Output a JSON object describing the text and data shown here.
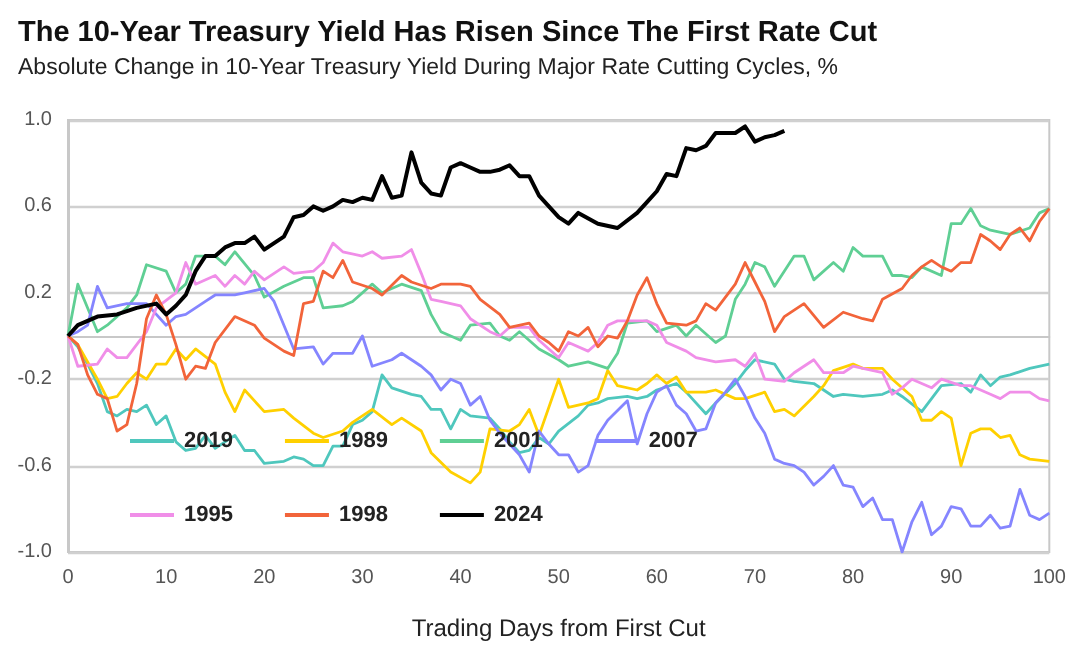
{
  "chart_data": {
    "type": "line",
    "title": "The 10-Year Treasury Yield Has Risen Since The First Rate Cut",
    "subtitle": "Absolute Change in 10-Year Treasury Yield During Major Rate Cutting Cycles, %",
    "xlabel": "Trading Days from First Cut",
    "xlim": [
      0,
      100
    ],
    "xticks": [
      0,
      10,
      20,
      30,
      40,
      50,
      60,
      70,
      80,
      90,
      100
    ],
    "ylim": [
      -1,
      1
    ],
    "yticks": [
      {
        "value": -1,
        "label": "-1.0"
      },
      -0.6,
      -0.2,
      0.2,
      0.6,
      {
        "value": 1,
        "label": "1.0"
      }
    ],
    "grid": "y",
    "legend": "bottom left",
    "marker": "none",
    "line_style": "solid",
    "series": [
      {
        "name": "2019",
        "color": "#4fc7bd",
        "x": [
          0,
          1,
          2,
          3,
          4,
          5,
          6,
          7,
          8,
          9,
          10,
          11,
          12,
          13,
          14,
          15,
          17,
          18,
          19,
          20,
          22,
          23,
          24,
          25,
          26,
          27,
          28,
          29,
          30,
          31,
          32,
          33,
          35,
          36,
          37,
          38,
          39,
          40,
          41,
          43,
          44,
          45,
          46,
          47,
          48,
          49,
          50,
          52,
          53,
          54,
          55,
          57,
          58,
          59,
          60,
          62,
          63,
          65,
          66,
          68,
          69,
          70,
          72,
          73,
          74,
          76,
          78,
          79,
          81,
          83,
          84,
          85,
          87,
          88,
          89,
          91,
          92,
          93,
          94,
          95,
          96,
          98,
          100
        ],
        "values": [
          0,
          -0.05,
          -0.13,
          -0.22,
          -0.35,
          -0.37,
          -0.34,
          -0.35,
          -0.32,
          -0.41,
          -0.37,
          -0.49,
          -0.53,
          -0.52,
          -0.46,
          -0.52,
          -0.46,
          -0.53,
          -0.53,
          -0.59,
          -0.58,
          -0.56,
          -0.57,
          -0.6,
          -0.6,
          -0.51,
          -0.51,
          -0.41,
          -0.39,
          -0.35,
          -0.18,
          -0.24,
          -0.27,
          -0.28,
          -0.34,
          -0.34,
          -0.43,
          -0.34,
          -0.37,
          -0.38,
          -0.43,
          -0.49,
          -0.54,
          -0.53,
          -0.47,
          -0.5,
          -0.44,
          -0.37,
          -0.32,
          -0.31,
          -0.29,
          -0.28,
          -0.29,
          -0.28,
          -0.25,
          -0.22,
          -0.26,
          -0.36,
          -0.31,
          -0.22,
          -0.16,
          -0.11,
          -0.13,
          -0.2,
          -0.21,
          -0.22,
          -0.28,
          -0.27,
          -0.28,
          -0.27,
          -0.25,
          -0.28,
          -0.35,
          -0.29,
          -0.23,
          -0.22,
          -0.26,
          -0.18,
          -0.23,
          -0.19,
          -0.18,
          -0.15,
          -0.13
        ]
      },
      {
        "name": "1989",
        "color": "#ffd000",
        "x": [
          0,
          1,
          3,
          4,
          5,
          6,
          7,
          8,
          9,
          10,
          11,
          12,
          13,
          15,
          16,
          17,
          18,
          20,
          22,
          23,
          25,
          26,
          28,
          29,
          31,
          33,
          34,
          36,
          37,
          39,
          41,
          42,
          43,
          45,
          46,
          47,
          48,
          50,
          51,
          53,
          54,
          55,
          56,
          58,
          59,
          60,
          61,
          62,
          63,
          65,
          66,
          68,
          69,
          71,
          72,
          73,
          74,
          76,
          77,
          78,
          80,
          81,
          83,
          84,
          86,
          87,
          88,
          89,
          90,
          91,
          92,
          93,
          94,
          95,
          96,
          97,
          98,
          100
        ],
        "values": [
          0,
          -0.04,
          -0.2,
          -0.29,
          -0.28,
          -0.22,
          -0.17,
          -0.2,
          -0.13,
          -0.13,
          -0.06,
          -0.11,
          -0.06,
          -0.13,
          -0.26,
          -0.35,
          -0.25,
          -0.35,
          -0.34,
          -0.38,
          -0.45,
          -0.47,
          -0.44,
          -0.4,
          -0.34,
          -0.41,
          -0.38,
          -0.44,
          -0.54,
          -0.63,
          -0.68,
          -0.63,
          -0.43,
          -0.44,
          -0.41,
          -0.34,
          -0.46,
          -0.2,
          -0.33,
          -0.31,
          -0.29,
          -0.16,
          -0.23,
          -0.25,
          -0.22,
          -0.18,
          -0.22,
          -0.19,
          -0.26,
          -0.26,
          -0.25,
          -0.29,
          -0.29,
          -0.26,
          -0.35,
          -0.34,
          -0.37,
          -0.28,
          -0.23,
          -0.16,
          -0.13,
          -0.15,
          -0.15,
          -0.2,
          -0.28,
          -0.39,
          -0.39,
          -0.35,
          -0.38,
          -0.6,
          -0.45,
          -0.43,
          -0.43,
          -0.47,
          -0.46,
          -0.55,
          -0.57,
          -0.58
        ]
      },
      {
        "name": "2001",
        "color": "#5fcf94",
        "x": [
          0,
          1,
          2,
          3,
          4,
          6,
          7,
          8,
          10,
          11,
          12,
          13,
          15,
          16,
          17,
          19,
          20,
          22,
          24,
          25,
          26,
          28,
          29,
          31,
          32,
          34,
          36,
          37,
          38,
          40,
          41,
          43,
          44,
          45,
          46,
          48,
          50,
          51,
          53,
          55,
          56,
          57,
          59,
          60,
          62,
          63,
          64,
          66,
          67,
          68,
          69,
          70,
          71,
          72,
          74,
          75,
          76,
          78,
          79,
          80,
          81,
          83,
          84,
          85,
          86,
          87,
          89,
          90,
          91,
          92,
          93,
          94,
          96,
          98,
          99,
          100
        ],
        "values": [
          0,
          0.24,
          0.13,
          0.02,
          0.05,
          0.13,
          0.19,
          0.33,
          0.3,
          0.2,
          0.24,
          0.37,
          0.37,
          0.33,
          0.39,
          0.28,
          0.18,
          0.23,
          0.27,
          0.27,
          0.13,
          0.14,
          0.16,
          0.24,
          0.2,
          0.24,
          0.21,
          0.1,
          0.02,
          -0.02,
          0.05,
          0.06,
          0,
          -0.02,
          0.02,
          -0.06,
          -0.11,
          -0.14,
          -0.12,
          -0.15,
          -0.08,
          0.06,
          0.07,
          0.02,
          0.05,
          0,
          0.05,
          -0.03,
          0,
          0.17,
          0.24,
          0.34,
          0.32,
          0.23,
          0.37,
          0.37,
          0.26,
          0.34,
          0.3,
          0.41,
          0.37,
          0.37,
          0.28,
          0.28,
          0.27,
          0.32,
          0.28,
          0.52,
          0.52,
          0.59,
          0.51,
          0.49,
          0.47,
          0.5,
          0.57,
          0.59
        ]
      },
      {
        "name": "2007",
        "color": "#8585ff",
        "x": [
          0,
          1,
          2,
          3,
          4,
          6,
          8,
          9,
          10,
          11,
          12,
          14,
          15,
          17,
          18,
          20,
          21,
          22,
          23,
          25,
          26,
          27,
          29,
          30,
          31,
          33,
          34,
          36,
          37,
          38,
          39,
          40,
          41,
          42,
          43,
          44,
          45,
          46,
          47,
          48,
          49,
          50,
          51,
          52,
          53,
          54,
          55,
          57,
          58,
          59,
          60,
          61,
          62,
          63,
          64,
          65,
          66,
          67,
          68,
          69,
          70,
          71,
          72,
          73,
          74,
          75,
          76,
          77,
          78,
          79,
          80,
          81,
          82,
          83,
          84,
          85,
          86,
          87,
          88,
          89,
          90,
          91,
          92,
          93,
          94,
          95,
          96,
          97,
          98,
          99,
          100
        ],
        "values": [
          0,
          0.02,
          0.05,
          0.23,
          0.13,
          0.15,
          0.15,
          0.1,
          0.05,
          0.09,
          0.1,
          0.16,
          0.19,
          0.19,
          0.2,
          0.22,
          0.16,
          0.05,
          -0.06,
          -0.05,
          -0.13,
          -0.08,
          -0.08,
          0,
          -0.14,
          -0.11,
          -0.08,
          -0.14,
          -0.18,
          -0.25,
          -0.2,
          -0.22,
          -0.32,
          -0.28,
          -0.39,
          -0.45,
          -0.5,
          -0.55,
          -0.63,
          -0.44,
          -0.5,
          -0.55,
          -0.55,
          -0.63,
          -0.6,
          -0.46,
          -0.39,
          -0.3,
          -0.5,
          -0.36,
          -0.26,
          -0.23,
          -0.32,
          -0.36,
          -0.44,
          -0.43,
          -0.31,
          -0.26,
          -0.2,
          -0.28,
          -0.38,
          -0.45,
          -0.57,
          -0.59,
          -0.6,
          -0.63,
          -0.69,
          -0.65,
          -0.6,
          -0.69,
          -0.7,
          -0.79,
          -0.75,
          -0.85,
          -0.85,
          -1.0,
          -0.86,
          -0.77,
          -0.92,
          -0.88,
          -0.79,
          -0.8,
          -0.88,
          -0.88,
          -0.83,
          -0.89,
          -0.88,
          -0.71,
          -0.83,
          -0.85,
          -0.82
        ]
      },
      {
        "name": "1995",
        "color": "#f08ee8",
        "x": [
          0,
          1,
          3,
          4,
          5,
          6,
          8,
          9,
          11,
          12,
          13,
          15,
          16,
          17,
          18,
          19,
          20,
          22,
          23,
          25,
          26,
          27,
          28,
          30,
          31,
          32,
          34,
          35,
          36,
          37,
          38,
          40,
          41,
          43,
          44,
          45,
          47,
          48,
          49,
          50,
          51,
          53,
          54,
          55,
          56,
          58,
          59,
          60,
          61,
          63,
          64,
          66,
          68,
          69,
          70,
          71,
          73,
          74,
          76,
          77,
          79,
          80,
          81,
          83,
          84,
          85,
          86,
          88,
          89,
          91,
          92,
          94,
          95,
          96,
          98,
          99,
          100
        ],
        "values": [
          0,
          -0.14,
          -0.13,
          -0.06,
          -0.1,
          -0.1,
          0.02,
          0.13,
          0.2,
          0.34,
          0.24,
          0.28,
          0.23,
          0.28,
          0.24,
          0.3,
          0.26,
          0.32,
          0.29,
          0.3,
          0.34,
          0.43,
          0.39,
          0.37,
          0.39,
          0.36,
          0.37,
          0.4,
          0.29,
          0.17,
          0.16,
          0.14,
          0.08,
          0.02,
          0,
          0.04,
          0.04,
          -0.02,
          -0.06,
          -0.1,
          -0.03,
          -0.07,
          -0.03,
          0.05,
          0.07,
          0.07,
          0.07,
          0.05,
          -0.03,
          -0.07,
          -0.1,
          -0.12,
          -0.11,
          -0.14,
          -0.08,
          -0.2,
          -0.21,
          -0.17,
          -0.11,
          -0.17,
          -0.17,
          -0.14,
          -0.15,
          -0.17,
          -0.27,
          -0.24,
          -0.2,
          -0.24,
          -0.2,
          -0.23,
          -0.23,
          -0.27,
          -0.29,
          -0.26,
          -0.26,
          -0.29,
          -0.3
        ]
      },
      {
        "name": "1998",
        "color": "#f2643a",
        "x": [
          0,
          1,
          2,
          3,
          4,
          5,
          6,
          7,
          8,
          9,
          10,
          11,
          12,
          13,
          14,
          15,
          17,
          19,
          20,
          22,
          23,
          24,
          25,
          26,
          27,
          28,
          29,
          31,
          32,
          34,
          35,
          37,
          38,
          40,
          41,
          42,
          44,
          45,
          47,
          48,
          49,
          50,
          51,
          52,
          53,
          54,
          55,
          56,
          57,
          58,
          59,
          60,
          61,
          63,
          64,
          65,
          66,
          68,
          69,
          70,
          71,
          72,
          73,
          75,
          77,
          79,
          81,
          82,
          83,
          85,
          86,
          87,
          88,
          89,
          90,
          91,
          92,
          93,
          94,
          95,
          96,
          97,
          98,
          99,
          100
        ],
        "values": [
          0,
          -0.04,
          -0.18,
          -0.27,
          -0.29,
          -0.44,
          -0.41,
          -0.22,
          0.08,
          0.19,
          0.1,
          -0.04,
          -0.2,
          -0.14,
          -0.15,
          -0.03,
          0.09,
          0.05,
          -0.01,
          -0.07,
          -0.09,
          0.15,
          0.16,
          0.3,
          0.27,
          0.35,
          0.25,
          0.22,
          0.19,
          0.28,
          0.25,
          0.22,
          0.24,
          0.24,
          0.23,
          0.17,
          0.1,
          0.04,
          0.06,
          0,
          -0.03,
          -0.07,
          0.02,
          0,
          0.04,
          -0.05,
          0,
          -0.01,
          0.07,
          0.19,
          0.27,
          0.15,
          0.06,
          0.05,
          0.07,
          0.15,
          0.12,
          0.24,
          0.34,
          0.25,
          0.16,
          0.02,
          0.09,
          0.15,
          0.04,
          0.11,
          0.08,
          0.07,
          0.17,
          0.22,
          0.28,
          0.32,
          0.35,
          0.32,
          0.3,
          0.34,
          0.34,
          0.47,
          0.44,
          0.4,
          0.47,
          0.5,
          0.44,
          0.53,
          0.59
        ]
      },
      {
        "name": "2024",
        "color": "#000000",
        "x": [
          0,
          1,
          3,
          5,
          7,
          9,
          10,
          11,
          12,
          13,
          14,
          15,
          16,
          17,
          18,
          19,
          20,
          22,
          23,
          24,
          25,
          26,
          27,
          28,
          29,
          30,
          31,
          32,
          33,
          34,
          35,
          36,
          37,
          38,
          39,
          40,
          41,
          42,
          43,
          44,
          45,
          46,
          47,
          48,
          50,
          51,
          52,
          54,
          56,
          58,
          59,
          60,
          61,
          62,
          63,
          64,
          65,
          66,
          67,
          68,
          69,
          70,
          71,
          72,
          73
        ],
        "values": [
          0,
          0.05,
          0.09,
          0.1,
          0.13,
          0.15,
          0.1,
          0.14,
          0.19,
          0.3,
          0.37,
          0.37,
          0.41,
          0.43,
          0.43,
          0.46,
          0.4,
          0.46,
          0.55,
          0.56,
          0.6,
          0.58,
          0.6,
          0.63,
          0.62,
          0.64,
          0.63,
          0.74,
          0.64,
          0.65,
          0.85,
          0.71,
          0.66,
          0.65,
          0.78,
          0.8,
          0.78,
          0.76,
          0.76,
          0.77,
          0.79,
          0.74,
          0.74,
          0.65,
          0.55,
          0.52,
          0.57,
          0.52,
          0.5,
          0.57,
          0.62,
          0.67,
          0.75,
          0.74,
          0.87,
          0.86,
          0.88,
          0.94,
          0.94,
          0.94,
          0.97,
          0.9,
          0.92,
          0.93,
          0.95
        ]
      }
    ]
  }
}
